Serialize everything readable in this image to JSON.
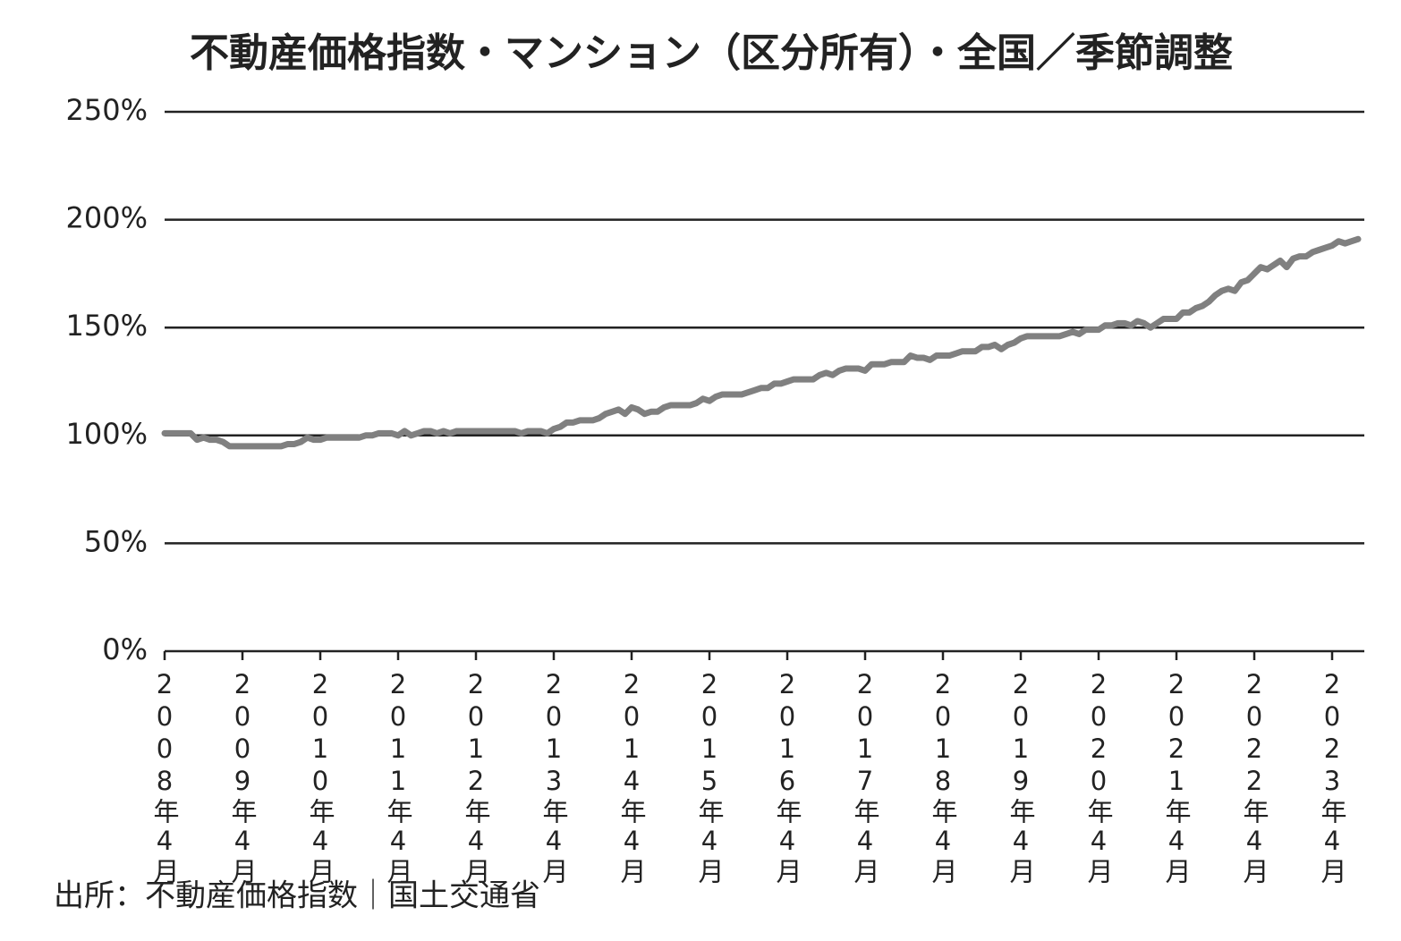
{
  "chart_data": {
    "type": "line",
    "title": "不動産価格指数・マンション（区分所有）・全国／季節調整",
    "source": "出所：不動産価格指数｜国土交通省",
    "color": "#808080",
    "ylim": [
      0,
      250
    ],
    "yticks": [
      {
        "value": 0,
        "label": "0%"
      },
      {
        "value": 50,
        "label": "50%"
      },
      {
        "value": 100,
        "label": "100%"
      },
      {
        "value": 150,
        "label": "150%"
      },
      {
        "value": 200,
        "label": "200%"
      },
      {
        "value": 250,
        "label": "250%"
      }
    ],
    "grid": true,
    "categories": [
      "2008年4月",
      null,
      null,
      null,
      null,
      null,
      null,
      null,
      null,
      null,
      null,
      null,
      "2009年4月",
      null,
      null,
      null,
      null,
      null,
      null,
      null,
      null,
      null,
      null,
      null,
      "2010年4月",
      null,
      null,
      null,
      null,
      null,
      null,
      null,
      null,
      null,
      null,
      null,
      "2011年4月",
      null,
      null,
      null,
      null,
      null,
      null,
      null,
      null,
      null,
      null,
      null,
      "2012年4月",
      null,
      null,
      null,
      null,
      null,
      null,
      null,
      null,
      null,
      null,
      null,
      "2013年4月",
      null,
      null,
      null,
      null,
      null,
      null,
      null,
      null,
      null,
      null,
      null,
      "2014年4月",
      null,
      null,
      null,
      null,
      null,
      null,
      null,
      null,
      null,
      null,
      null,
      "2015年4月",
      null,
      null,
      null,
      null,
      null,
      null,
      null,
      null,
      null,
      null,
      null,
      "2016年4月",
      null,
      null,
      null,
      null,
      null,
      null,
      null,
      null,
      null,
      null,
      null,
      "2017年4月",
      null,
      null,
      null,
      null,
      null,
      null,
      null,
      null,
      null,
      null,
      null,
      "2018年4月",
      null,
      null,
      null,
      null,
      null,
      null,
      null,
      null,
      null,
      null,
      null,
      "2019年4月",
      null,
      null,
      null,
      null,
      null,
      null,
      null,
      null,
      null,
      null,
      null,
      "2020年4月",
      null,
      null,
      null,
      null,
      null,
      null,
      null,
      null,
      null,
      null,
      null,
      "2021年4月",
      null,
      null,
      null,
      null,
      null,
      null,
      null,
      null,
      null,
      null,
      null,
      "2022年4月",
      null,
      null,
      null,
      null,
      null,
      null,
      null,
      null,
      null,
      null,
      null,
      "2023年4月",
      null,
      null,
      null,
      null
    ],
    "values": [
      101,
      101,
      101,
      101,
      101,
      98,
      99,
      98,
      98,
      97,
      95,
      95,
      95,
      95,
      95,
      95,
      95,
      95,
      95,
      96,
      96,
      97,
      99,
      98,
      98,
      99,
      99,
      99,
      99,
      99,
      99,
      100,
      100,
      101,
      101,
      101,
      100,
      102,
      100,
      101,
      102,
      102,
      101,
      102,
      101,
      102,
      102,
      102,
      102,
      102,
      102,
      102,
      102,
      102,
      102,
      101,
      102,
      102,
      102,
      101,
      103,
      104,
      106,
      106,
      107,
      107,
      107,
      108,
      110,
      111,
      112,
      110,
      113,
      112,
      110,
      111,
      111,
      113,
      114,
      114,
      114,
      114,
      115,
      117,
      116,
      118,
      119,
      119,
      119,
      119,
      120,
      121,
      122,
      122,
      124,
      124,
      125,
      126,
      126,
      126,
      126,
      128,
      129,
      128,
      130,
      131,
      131,
      131,
      130,
      133,
      133,
      133,
      134,
      134,
      134,
      137,
      136,
      136,
      135,
      137,
      137,
      137,
      138,
      139,
      139,
      139,
      141,
      141,
      142,
      140,
      142,
      143,
      145,
      146,
      146,
      146,
      146,
      146,
      146,
      147,
      148,
      147,
      149,
      149,
      149,
      151,
      151,
      152,
      152,
      151,
      153,
      152,
      150,
      152,
      154,
      154,
      154,
      157,
      157,
      159,
      160,
      162,
      165,
      167,
      168,
      167,
      171,
      172,
      175,
      178,
      177,
      179,
      181,
      178,
      182,
      183,
      183,
      185,
      186,
      187,
      188,
      190,
      189,
      190,
      191
    ]
  }
}
